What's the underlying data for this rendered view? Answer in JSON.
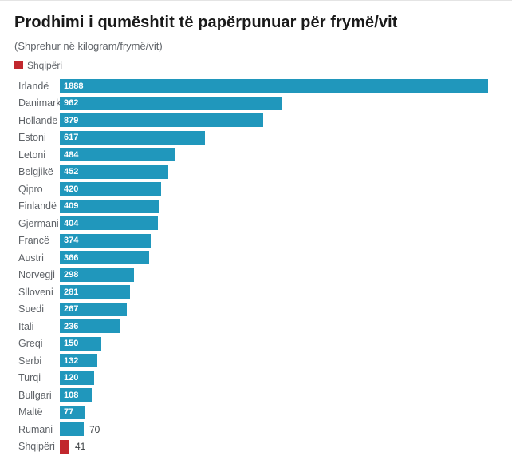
{
  "header": {
    "title": "Prodhimi i qumështit të papërpunuar për frymë/vit",
    "subtitle": "(Shprehur në kilogram/frymë/vit)"
  },
  "legend": {
    "label": "Shqipëri",
    "swatch_color": "#c1272d"
  },
  "colors": {
    "bar_default": "#2097bc",
    "bar_highlight": "#c1272d",
    "title_text": "#1a1a1a",
    "muted_text": "#5f6368",
    "value_outside_text": "#3c4043",
    "value_inside_text": "#ffffff"
  },
  "chart_data": {
    "type": "bar",
    "orientation": "horizontal",
    "title": "Prodhimi i qumështit të papërpunuar për frymë/vit",
    "subtitle": "(Shprehur në kilogram/frymë/vit)",
    "unit": "kilogram/frymë/vit",
    "xlim": [
      0,
      1888
    ],
    "grid": false,
    "legend_position": "top-left",
    "categories": [
      "Irlandë",
      "Danimarkë",
      "Hollandë",
      "Estoni",
      "Letoni",
      "Belgjikë",
      "Qipro",
      "Finlandë",
      "Gjermani",
      "Francë",
      "Austri",
      "Norvegji",
      "Slloveni",
      "Suedi",
      "Itali",
      "Greqi",
      "Serbi",
      "Turqi",
      "Bullgari",
      "Maltë",
      "Rumani",
      "Shqipëri"
    ],
    "values": [
      1888,
      962,
      879,
      617,
      484,
      452,
      420,
      409,
      404,
      374,
      366,
      298,
      281,
      267,
      236,
      150,
      132,
      120,
      108,
      77,
      70,
      41
    ],
    "rows": [
      {
        "label": "Irlandë",
        "value": 1888,
        "highlight": false,
        "value_inside": true
      },
      {
        "label": "Danimarkë",
        "value": 962,
        "highlight": false,
        "value_inside": true
      },
      {
        "label": "Hollandë",
        "value": 879,
        "highlight": false,
        "value_inside": true
      },
      {
        "label": "Estoni",
        "value": 617,
        "highlight": false,
        "value_inside": true
      },
      {
        "label": "Letoni",
        "value": 484,
        "highlight": false,
        "value_inside": true
      },
      {
        "label": "Belgjikë",
        "value": 452,
        "highlight": false,
        "value_inside": true
      },
      {
        "label": "Qipro",
        "value": 420,
        "highlight": false,
        "value_inside": true
      },
      {
        "label": "Finlandë",
        "value": 409,
        "highlight": false,
        "value_inside": true
      },
      {
        "label": "Gjermani",
        "value": 404,
        "highlight": false,
        "value_inside": true
      },
      {
        "label": "Francë",
        "value": 374,
        "highlight": false,
        "value_inside": true
      },
      {
        "label": "Austri",
        "value": 366,
        "highlight": false,
        "value_inside": true
      },
      {
        "label": "Norvegji",
        "value": 298,
        "highlight": false,
        "value_inside": true
      },
      {
        "label": "Slloveni",
        "value": 281,
        "highlight": false,
        "value_inside": true
      },
      {
        "label": "Suedi",
        "value": 267,
        "highlight": false,
        "value_inside": true
      },
      {
        "label": "Itali",
        "value": 236,
        "highlight": false,
        "value_inside": true
      },
      {
        "label": "Greqi",
        "value": 150,
        "highlight": false,
        "value_inside": true
      },
      {
        "label": "Serbi",
        "value": 132,
        "highlight": false,
        "value_inside": true
      },
      {
        "label": "Turqi",
        "value": 120,
        "highlight": false,
        "value_inside": true
      },
      {
        "label": "Bullgari",
        "value": 108,
        "highlight": false,
        "value_inside": true
      },
      {
        "label": "Maltë",
        "value": 77,
        "highlight": false,
        "value_inside": true
      },
      {
        "label": "Rumani",
        "value": 70,
        "highlight": false,
        "value_inside": false
      },
      {
        "label": "Shqipëri",
        "value": 41,
        "highlight": true,
        "value_inside": false
      }
    ]
  }
}
